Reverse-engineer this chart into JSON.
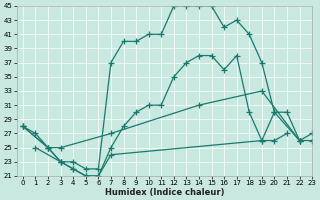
{
  "xlabel": "Humidex (Indice chaleur)",
  "xlim": [
    -0.5,
    23
  ],
  "ylim": [
    21,
    45
  ],
  "yticks": [
    21,
    23,
    25,
    27,
    29,
    31,
    33,
    35,
    37,
    39,
    41,
    43,
    45
  ],
  "xticks": [
    0,
    1,
    2,
    3,
    4,
    5,
    6,
    7,
    8,
    9,
    10,
    11,
    12,
    13,
    14,
    15,
    16,
    17,
    18,
    19,
    20,
    21,
    22,
    23
  ],
  "bg_color": "#c8e8e0",
  "line_color": "#1a7a6e",
  "line_width": 0.9,
  "marker": "+",
  "marker_size": 4,
  "marker_edge_width": 0.9,
  "lines": [
    {
      "x": [
        0,
        1,
        2,
        3,
        4,
        5,
        6,
        7,
        8,
        9,
        10,
        11,
        12,
        13,
        14,
        15,
        16,
        17,
        18,
        19,
        20,
        21
      ],
      "y": [
        28,
        27,
        25,
        23,
        22,
        21,
        21,
        25,
        28,
        30,
        31,
        31,
        35,
        37,
        38,
        38,
        36,
        38,
        30,
        26,
        26,
        27
      ]
    },
    {
      "x": [
        0,
        2,
        3,
        4,
        5,
        6,
        7,
        8,
        9,
        10,
        11,
        12,
        13,
        14,
        15,
        16,
        17,
        18,
        19,
        20,
        21,
        22
      ],
      "y": [
        28,
        25,
        23,
        23,
        22,
        22,
        37,
        40,
        40,
        41,
        41,
        45,
        45,
        45,
        45,
        42,
        43,
        41,
        37,
        30,
        30,
        26
      ]
    },
    {
      "x": [
        0,
        2,
        3,
        7,
        14,
        19,
        22,
        23
      ],
      "y": [
        28,
        25,
        25,
        27,
        31,
        33,
        26,
        26
      ]
    },
    {
      "x": [
        1,
        3,
        4,
        5,
        6,
        7,
        19,
        20,
        22,
        23
      ],
      "y": [
        25,
        23,
        22,
        21,
        21,
        24,
        26,
        30,
        26,
        27
      ]
    }
  ]
}
